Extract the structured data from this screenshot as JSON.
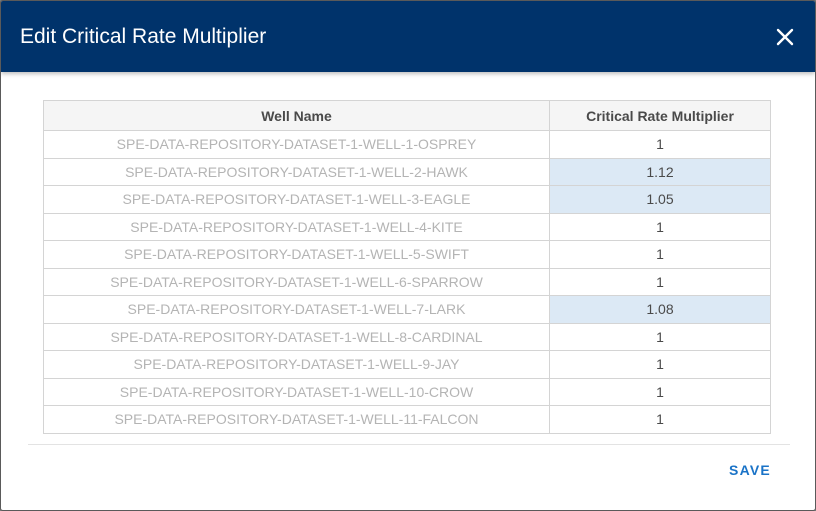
{
  "dialog": {
    "title": "Edit Critical Rate Multiplier",
    "close_icon": "close-icon",
    "save_label": "SAVE"
  },
  "table": {
    "headers": [
      "Well Name",
      "Critical Rate Multiplier"
    ],
    "rows": [
      {
        "name": "SPE-DATA-REPOSITORY-DATASET-1-WELL-1-OSPREY",
        "multiplier": "1",
        "edited": false
      },
      {
        "name": "SPE-DATA-REPOSITORY-DATASET-1-WELL-2-HAWK",
        "multiplier": "1.12",
        "edited": true
      },
      {
        "name": "SPE-DATA-REPOSITORY-DATASET-1-WELL-3-EAGLE",
        "multiplier": "1.05",
        "edited": true
      },
      {
        "name": "SPE-DATA-REPOSITORY-DATASET-1-WELL-4-KITE",
        "multiplier": "1",
        "edited": false
      },
      {
        "name": "SPE-DATA-REPOSITORY-DATASET-1-WELL-5-SWIFT",
        "multiplier": "1",
        "edited": false
      },
      {
        "name": "SPE-DATA-REPOSITORY-DATASET-1-WELL-6-SPARROW",
        "multiplier": "1",
        "edited": false
      },
      {
        "name": "SPE-DATA-REPOSITORY-DATASET-1-WELL-7-LARK",
        "multiplier": "1.08",
        "edited": true
      },
      {
        "name": "SPE-DATA-REPOSITORY-DATASET-1-WELL-8-CARDINAL",
        "multiplier": "1",
        "edited": false
      },
      {
        "name": "SPE-DATA-REPOSITORY-DATASET-1-WELL-9-JAY",
        "multiplier": "1",
        "edited": false
      },
      {
        "name": "SPE-DATA-REPOSITORY-DATASET-1-WELL-10-CROW",
        "multiplier": "1",
        "edited": false
      },
      {
        "name": "SPE-DATA-REPOSITORY-DATASET-1-WELL-11-FALCON",
        "multiplier": "1",
        "edited": false
      }
    ]
  },
  "colors": {
    "header_bg": "#00336b",
    "edited_cell_bg": "#dce9f5",
    "save_text": "#1a73c7"
  }
}
